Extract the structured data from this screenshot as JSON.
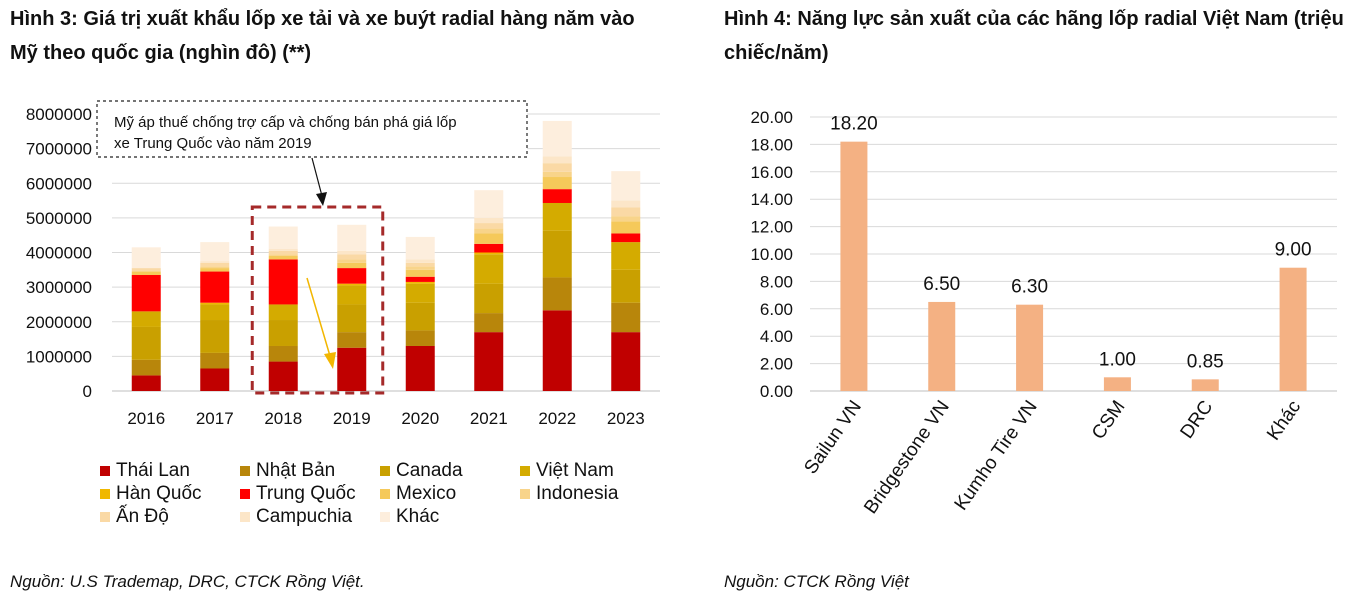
{
  "chart_data": [
    {
      "type": "bar",
      "stacked": true,
      "title": "Hình 3: Giá trị xuất khẩu lốp xe tải và xe buýt radial hàng năm vào Mỹ theo quốc gia (nghìn đô) (**)",
      "source": "Nguồn: U.S Trademap, DRC, CTCK Rồng Việt.",
      "categories": [
        "2016",
        "2017",
        "2018",
        "2019",
        "2020",
        "2021",
        "2022",
        "2023"
      ],
      "ylim": [
        0,
        8000000
      ],
      "yticks": [
        "0",
        "1000000",
        "2000000",
        "3000000",
        "4000000",
        "5000000",
        "6000000",
        "7000000",
        "8000000"
      ],
      "grid": true,
      "legend_position": "bottom",
      "annotation": {
        "lines": [
          "Mỹ áp thuế chống trợ cấp và chống bán phá giá lốp",
          "xe Trung Quốc vào năm 2019"
        ]
      },
      "series": [
        {
          "name": "Thái Lan",
          "color": "#C00000",
          "values": [
            450000,
            650000,
            850000,
            1250000,
            1300000,
            1700000,
            2330000,
            1700000
          ]
        },
        {
          "name": "Nhật Bản",
          "color": "#B8860B",
          "values": [
            450000,
            450000,
            450000,
            450000,
            450000,
            550000,
            950000,
            850000
          ]
        },
        {
          "name": "Canada",
          "color": "#C9A000",
          "values": [
            950000,
            950000,
            750000,
            800000,
            800000,
            850000,
            1350000,
            950000
          ]
        },
        {
          "name": "Việt Nam",
          "color": "#D4AB00",
          "values": [
            450000,
            450000,
            450000,
            550000,
            550000,
            850000,
            800000,
            800000
          ]
        },
        {
          "name": "Hàn Quốc",
          "color": "#F0B800",
          "values": [
            0,
            50000,
            0,
            50000,
            50000,
            50000,
            0,
            0
          ]
        },
        {
          "name": "Trung Quốc",
          "color": "#FF0000",
          "values": [
            1050000,
            900000,
            1300000,
            450000,
            150000,
            250000,
            400000,
            250000
          ]
        },
        {
          "name": "Mexico",
          "color": "#F5C95A",
          "values": [
            100000,
            100000,
            100000,
            150000,
            200000,
            300000,
            350000,
            350000
          ]
        },
        {
          "name": "Indonesia",
          "color": "#F8D48A",
          "values": [
            0,
            50000,
            50000,
            100000,
            100000,
            150000,
            150000,
            150000
          ]
        },
        {
          "name": "Ấn Độ",
          "color": "#FAD9A5",
          "values": [
            100000,
            100000,
            100000,
            150000,
            100000,
            150000,
            250000,
            250000
          ]
        },
        {
          "name": "Campuchia",
          "color": "#FCE6C8",
          "values": [
            0,
            50000,
            50000,
            100000,
            100000,
            150000,
            200000,
            200000
          ]
        },
        {
          "name": "Khác",
          "color": "#FDEEDD",
          "values": [
            600000,
            550000,
            650000,
            750000,
            650000,
            800000,
            1020000,
            850000
          ]
        }
      ]
    },
    {
      "type": "bar",
      "title": "Hình 4: Năng lực sản xuất của các hãng lốp radial Việt Nam (triệu chiếc/năm)",
      "source": "Nguồn: CTCK Rồng Việt",
      "categories": [
        "Sailun VN",
        "Bridgestone VN",
        "Kumho Tire VN",
        "CSM",
        "DRC",
        "Khác"
      ],
      "values": [
        18.2,
        6.5,
        6.3,
        1.0,
        0.85,
        9.0
      ],
      "data_labels": [
        "18.20",
        "6.50",
        "6.30",
        "1.00",
        "0.85",
        "9.00"
      ],
      "ylim": [
        0,
        20
      ],
      "yticks": [
        "0.00",
        "2.00",
        "4.00",
        "6.00",
        "8.00",
        "10.00",
        "12.00",
        "14.00",
        "16.00",
        "18.00",
        "20.00"
      ],
      "color": "#F4B183",
      "grid": true
    }
  ]
}
